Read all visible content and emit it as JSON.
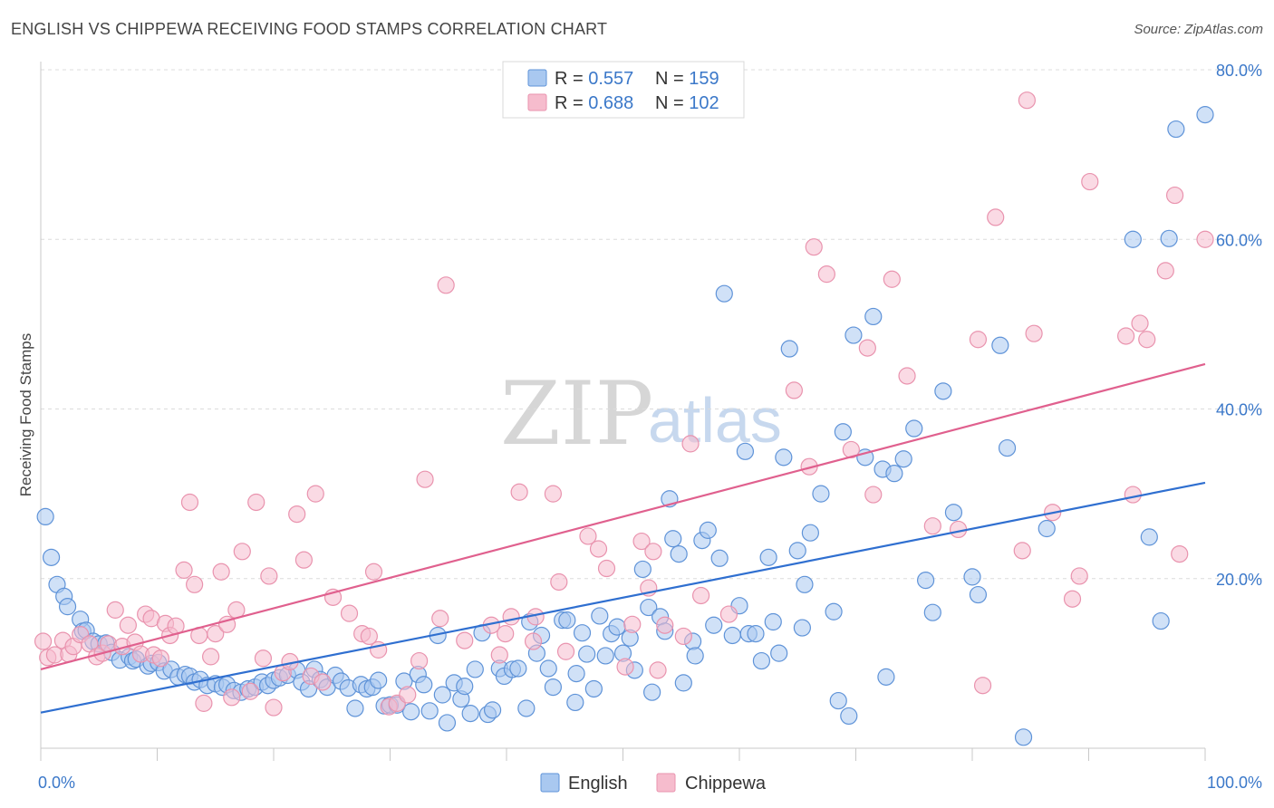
{
  "title": "ENGLISH VS CHIPPEWA RECEIVING FOOD STAMPS CORRELATION CHART",
  "source": "Source: ZipAtlas.com",
  "watermark": {
    "part1": "ZIP",
    "part2": "atlas"
  },
  "legend": {
    "rows": [
      {
        "r_label": "R = ",
        "r_value": "0.557",
        "n_label": "N = ",
        "n_value": "159"
      },
      {
        "r_label": "R = ",
        "r_value": "0.688",
        "n_label": "N = ",
        "n_value": "102"
      }
    ],
    "bottom": [
      "English",
      "Chippewa"
    ]
  },
  "colors": {
    "english_fill": "#a9c8f0",
    "english_stroke": "#5f93d8",
    "english_line": "#2f6fd0",
    "chippewa_fill": "#f6bccd",
    "chippewa_stroke": "#e993ae",
    "chippewa_line": "#e0608e",
    "tick_text": "#3b78c9"
  },
  "chart_data": {
    "type": "scatter",
    "title": "ENGLISH VS CHIPPEWA RECEIVING FOOD STAMPS CORRELATION CHART",
    "xlabel": "",
    "ylabel": "Receiving Food Stamps",
    "xlim": [
      0,
      100
    ],
    "ylim": [
      0,
      80
    ],
    "x_tick_labels": [
      "0.0%",
      "100.0%"
    ],
    "y_ticks": [
      20,
      40,
      60,
      80
    ],
    "y_tick_labels": [
      "20.0%",
      "40.0%",
      "60.0%",
      "80.0%"
    ],
    "grid": true,
    "legend_position": "top-center",
    "series": [
      {
        "name": "English",
        "R": 0.557,
        "N": 159,
        "trend": {
          "x": [
            0,
            100
          ],
          "y": [
            4.2,
            31.3
          ]
        },
        "points": [
          [
            0.4,
            27.3
          ],
          [
            0.9,
            22.5
          ],
          [
            1.4,
            19.3
          ],
          [
            2.0,
            17.9
          ],
          [
            2.3,
            16.7
          ],
          [
            3.4,
            15.2
          ],
          [
            3.6,
            13.8
          ],
          [
            3.9,
            13.9
          ],
          [
            4.5,
            12.6
          ],
          [
            5.0,
            12.3
          ],
          [
            5.6,
            12.4
          ],
          [
            6.1,
            11.3
          ],
          [
            6.8,
            10.4
          ],
          [
            7.6,
            10.8
          ],
          [
            7.9,
            10.3
          ],
          [
            8.2,
            10.5
          ],
          [
            9.2,
            9.7
          ],
          [
            9.5,
            10.0
          ],
          [
            10.1,
            10.1
          ],
          [
            10.6,
            9.1
          ],
          [
            11.2,
            9.3
          ],
          [
            11.8,
            8.4
          ],
          [
            12.4,
            8.7
          ],
          [
            12.8,
            8.5
          ],
          [
            13.2,
            7.8
          ],
          [
            13.7,
            8.1
          ],
          [
            14.3,
            7.4
          ],
          [
            15.0,
            7.6
          ],
          [
            15.6,
            7.2
          ],
          [
            16.0,
            7.5
          ],
          [
            16.6,
            6.8
          ],
          [
            17.2,
            6.6
          ],
          [
            17.8,
            7.0
          ],
          [
            18.4,
            7.2
          ],
          [
            19.0,
            7.8
          ],
          [
            19.5,
            7.4
          ],
          [
            20.0,
            8.0
          ],
          [
            20.5,
            8.3
          ],
          [
            21.2,
            8.6
          ],
          [
            22.0,
            9.2
          ],
          [
            22.4,
            7.8
          ],
          [
            23.0,
            7.0
          ],
          [
            23.5,
            9.3
          ],
          [
            24.0,
            8.1
          ],
          [
            24.6,
            7.2
          ],
          [
            25.3,
            8.6
          ],
          [
            25.8,
            7.9
          ],
          [
            26.4,
            7.1
          ],
          [
            27.0,
            4.7
          ],
          [
            27.5,
            7.5
          ],
          [
            28.0,
            7.0
          ],
          [
            28.5,
            7.2
          ],
          [
            29.0,
            8.0
          ],
          [
            29.5,
            5.0
          ],
          [
            30.0,
            5.1
          ],
          [
            30.6,
            5.1
          ],
          [
            31.2,
            7.9
          ],
          [
            31.8,
            4.3
          ],
          [
            32.4,
            8.7
          ],
          [
            32.9,
            7.5
          ],
          [
            33.4,
            4.4
          ],
          [
            34.1,
            13.3
          ],
          [
            34.5,
            6.3
          ],
          [
            34.9,
            3.0
          ],
          [
            35.5,
            7.7
          ],
          [
            36.1,
            5.8
          ],
          [
            36.4,
            7.3
          ],
          [
            36.9,
            4.1
          ],
          [
            37.3,
            9.3
          ],
          [
            37.9,
            13.6
          ],
          [
            38.4,
            4.0
          ],
          [
            38.8,
            4.5
          ],
          [
            39.4,
            9.4
          ],
          [
            39.8,
            8.5
          ],
          [
            40.5,
            9.3
          ],
          [
            41.0,
            9.4
          ],
          [
            41.7,
            4.7
          ],
          [
            42.0,
            14.9
          ],
          [
            42.6,
            11.2
          ],
          [
            43.0,
            13.3
          ],
          [
            43.6,
            9.4
          ],
          [
            44.0,
            7.2
          ],
          [
            44.8,
            15.1
          ],
          [
            45.2,
            15.1
          ],
          [
            45.9,
            5.4
          ],
          [
            46.0,
            8.8
          ],
          [
            46.5,
            13.6
          ],
          [
            46.9,
            11.1
          ],
          [
            47.5,
            7.0
          ],
          [
            48.0,
            15.6
          ],
          [
            48.5,
            10.9
          ],
          [
            49.0,
            13.5
          ],
          [
            49.5,
            14.3
          ],
          [
            50.0,
            11.2
          ],
          [
            50.6,
            13.0
          ],
          [
            51.0,
            9.2
          ],
          [
            51.7,
            21.1
          ],
          [
            52.2,
            16.6
          ],
          [
            52.5,
            6.6
          ],
          [
            53.2,
            15.5
          ],
          [
            53.6,
            13.8
          ],
          [
            54.0,
            29.4
          ],
          [
            54.3,
            24.7
          ],
          [
            54.8,
            22.9
          ],
          [
            55.2,
            7.7
          ],
          [
            56.0,
            12.6
          ],
          [
            56.2,
            10.9
          ],
          [
            56.8,
            24.5
          ],
          [
            57.3,
            25.7
          ],
          [
            57.8,
            14.5
          ],
          [
            58.3,
            22.4
          ],
          [
            58.7,
            53.6
          ],
          [
            59.4,
            13.3
          ],
          [
            60.0,
            16.8
          ],
          [
            60.5,
            35.0
          ],
          [
            60.8,
            13.5
          ],
          [
            61.4,
            13.5
          ],
          [
            61.9,
            10.3
          ],
          [
            62.5,
            22.5
          ],
          [
            62.9,
            14.9
          ],
          [
            63.4,
            11.2
          ],
          [
            63.8,
            34.3
          ],
          [
            64.3,
            47.1
          ],
          [
            65.0,
            23.3
          ],
          [
            65.4,
            14.2
          ],
          [
            65.6,
            19.3
          ],
          [
            66.1,
            25.4
          ],
          [
            67.0,
            30.0
          ],
          [
            68.1,
            16.1
          ],
          [
            68.5,
            5.6
          ],
          [
            68.9,
            37.3
          ],
          [
            69.4,
            3.8
          ],
          [
            69.8,
            48.7
          ],
          [
            70.8,
            34.3
          ],
          [
            71.5,
            50.9
          ],
          [
            72.3,
            32.9
          ],
          [
            72.6,
            8.4
          ],
          [
            73.3,
            32.4
          ],
          [
            74.1,
            34.1
          ],
          [
            75.0,
            37.7
          ],
          [
            76.0,
            19.8
          ],
          [
            76.6,
            16.0
          ],
          [
            77.5,
            42.1
          ],
          [
            78.4,
            27.8
          ],
          [
            80.0,
            20.2
          ],
          [
            80.5,
            18.1
          ],
          [
            82.4,
            47.5
          ],
          [
            83.0,
            35.4
          ],
          [
            84.4,
            1.3
          ],
          [
            86.4,
            25.9
          ],
          [
            93.8,
            60.0
          ],
          [
            95.2,
            24.9
          ],
          [
            96.2,
            15.0
          ],
          [
            100.0,
            74.7
          ],
          [
            96.9,
            60.1
          ],
          [
            97.5,
            73.0
          ]
        ]
      },
      {
        "name": "Chippewa",
        "R": 0.688,
        "N": 102,
        "trend": {
          "x": [
            0,
            100
          ],
          "y": [
            9.3,
            45.3
          ]
        },
        "points": [
          [
            0.2,
            12.6
          ],
          [
            0.6,
            10.7
          ],
          [
            1.2,
            11.0
          ],
          [
            1.9,
            12.7
          ],
          [
            2.4,
            11.1
          ],
          [
            2.8,
            12.0
          ],
          [
            3.4,
            13.4
          ],
          [
            4.2,
            12.3
          ],
          [
            4.8,
            10.8
          ],
          [
            5.3,
            11.2
          ],
          [
            5.8,
            12.3
          ],
          [
            6.4,
            16.3
          ],
          [
            7.0,
            12.0
          ],
          [
            7.5,
            14.5
          ],
          [
            8.1,
            12.5
          ],
          [
            8.6,
            11.1
          ],
          [
            9.0,
            15.8
          ],
          [
            9.5,
            15.3
          ],
          [
            9.7,
            11.0
          ],
          [
            10.3,
            10.6
          ],
          [
            10.7,
            14.7
          ],
          [
            11.1,
            13.3
          ],
          [
            11.6,
            14.4
          ],
          [
            12.3,
            21.0
          ],
          [
            12.8,
            29.0
          ],
          [
            13.2,
            19.3
          ],
          [
            13.6,
            13.3
          ],
          [
            14.0,
            5.3
          ],
          [
            14.6,
            10.8
          ],
          [
            15.0,
            13.5
          ],
          [
            15.5,
            20.8
          ],
          [
            16.0,
            14.6
          ],
          [
            16.4,
            6.0
          ],
          [
            16.8,
            16.3
          ],
          [
            17.3,
            23.2
          ],
          [
            18.0,
            6.7
          ],
          [
            18.5,
            29.0
          ],
          [
            19.1,
            10.6
          ],
          [
            19.6,
            20.3
          ],
          [
            20.0,
            4.8
          ],
          [
            20.8,
            8.9
          ],
          [
            21.4,
            10.2
          ],
          [
            22.0,
            27.6
          ],
          [
            22.6,
            22.2
          ],
          [
            23.2,
            8.5
          ],
          [
            23.6,
            30.0
          ],
          [
            24.2,
            7.8
          ],
          [
            25.1,
            17.8
          ],
          [
            26.5,
            15.9
          ],
          [
            27.6,
            13.5
          ],
          [
            28.2,
            13.2
          ],
          [
            28.6,
            20.8
          ],
          [
            29.0,
            11.6
          ],
          [
            29.9,
            4.9
          ],
          [
            30.6,
            5.3
          ],
          [
            31.5,
            6.3
          ],
          [
            32.5,
            10.3
          ],
          [
            33.0,
            31.7
          ],
          [
            34.3,
            15.3
          ],
          [
            34.8,
            54.6
          ],
          [
            36.4,
            12.7
          ],
          [
            38.7,
            14.5
          ],
          [
            39.4,
            11.0
          ],
          [
            39.9,
            13.5
          ],
          [
            40.4,
            15.5
          ],
          [
            41.1,
            30.2
          ],
          [
            42.3,
            12.6
          ],
          [
            42.5,
            15.5
          ],
          [
            44.0,
            30.0
          ],
          [
            44.5,
            19.6
          ],
          [
            45.1,
            11.4
          ],
          [
            47.0,
            25.0
          ],
          [
            47.9,
            23.5
          ],
          [
            48.6,
            21.2
          ],
          [
            50.2,
            9.6
          ],
          [
            50.8,
            14.6
          ],
          [
            51.6,
            24.4
          ],
          [
            52.2,
            18.9
          ],
          [
            52.6,
            23.2
          ],
          [
            53.0,
            9.2
          ],
          [
            53.6,
            14.5
          ],
          [
            55.2,
            13.2
          ],
          [
            55.8,
            35.9
          ],
          [
            56.7,
            18.0
          ],
          [
            59.1,
            15.8
          ],
          [
            64.7,
            42.2
          ],
          [
            66.0,
            33.2
          ],
          [
            66.4,
            59.1
          ],
          [
            67.5,
            55.9
          ],
          [
            69.6,
            35.2
          ],
          [
            71.0,
            47.2
          ],
          [
            71.5,
            29.9
          ],
          [
            73.1,
            55.3
          ],
          [
            74.4,
            43.9
          ],
          [
            76.6,
            26.2
          ],
          [
            78.8,
            25.8
          ],
          [
            80.5,
            48.2
          ],
          [
            80.9,
            7.4
          ],
          [
            82.0,
            62.6
          ],
          [
            84.3,
            23.3
          ],
          [
            85.3,
            48.9
          ],
          [
            86.9,
            27.8
          ],
          [
            88.6,
            17.6
          ],
          [
            89.2,
            20.3
          ],
          [
            90.1,
            66.8
          ],
          [
            93.2,
            48.6
          ],
          [
            93.8,
            29.9
          ],
          [
            94.4,
            50.1
          ],
          [
            95.0,
            48.2
          ],
          [
            96.6,
            56.3
          ],
          [
            97.4,
            65.2
          ],
          [
            97.8,
            22.9
          ],
          [
            100.0,
            60.0
          ],
          [
            84.7,
            76.4
          ]
        ]
      }
    ]
  }
}
